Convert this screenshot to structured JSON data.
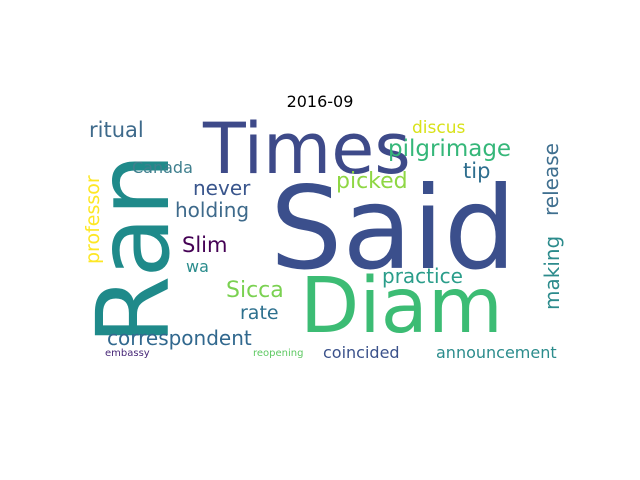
{
  "title": "2016-09",
  "colors": {
    "background": "#ffffff",
    "title": "#000000"
  },
  "words": [
    {
      "id": "said",
      "text": "Said",
      "color": "#3b4f8c"
    },
    {
      "id": "ran",
      "text": "Ran",
      "color": "#1f8a8a"
    },
    {
      "id": "diam",
      "text": "Diam",
      "color": "#3cbc74"
    },
    {
      "id": "times",
      "text": "Times",
      "color": "#3e4a89"
    },
    {
      "id": "pilgrimage",
      "text": "pilgrimage",
      "color": "#35b779"
    },
    {
      "id": "correspondent",
      "text": "correspondent",
      "color": "#31688e"
    },
    {
      "id": "ritual",
      "text": "ritual",
      "color": "#3e6a8b"
    },
    {
      "id": "picked",
      "text": "picked",
      "color": "#8fd744"
    },
    {
      "id": "release",
      "text": "release",
      "color": "#3f6f8f"
    },
    {
      "id": "making",
      "text": "making",
      "color": "#2c8b8c"
    },
    {
      "id": "professor",
      "text": "professor",
      "color": "#fde725"
    },
    {
      "id": "holding",
      "text": "holding",
      "color": "#3e6a8b"
    },
    {
      "id": "never",
      "text": "never",
      "color": "#39558c"
    },
    {
      "id": "tip",
      "text": "tip",
      "color": "#2e6e8e"
    },
    {
      "id": "slim",
      "text": "Slim",
      "color": "#440154"
    },
    {
      "id": "sicca",
      "text": "Sicca",
      "color": "#7ad151"
    },
    {
      "id": "practice",
      "text": "practice",
      "color": "#2a9d8a"
    },
    {
      "id": "rate",
      "text": "rate",
      "color": "#2d708e"
    },
    {
      "id": "discus",
      "text": "discus",
      "color": "#d8e219"
    },
    {
      "id": "canada",
      "text": "Canada",
      "color": "#3f7f8e"
    },
    {
      "id": "wa",
      "text": "wa",
      "color": "#2a8c8c"
    },
    {
      "id": "coincided",
      "text": "coincided",
      "color": "#3b528b"
    },
    {
      "id": "announcement",
      "text": "announcement",
      "color": "#2b8c8c"
    },
    {
      "id": "embassy",
      "text": "embassy",
      "color": "#482878"
    },
    {
      "id": "reopening",
      "text": "reopening",
      "color": "#5ec962"
    }
  ]
}
